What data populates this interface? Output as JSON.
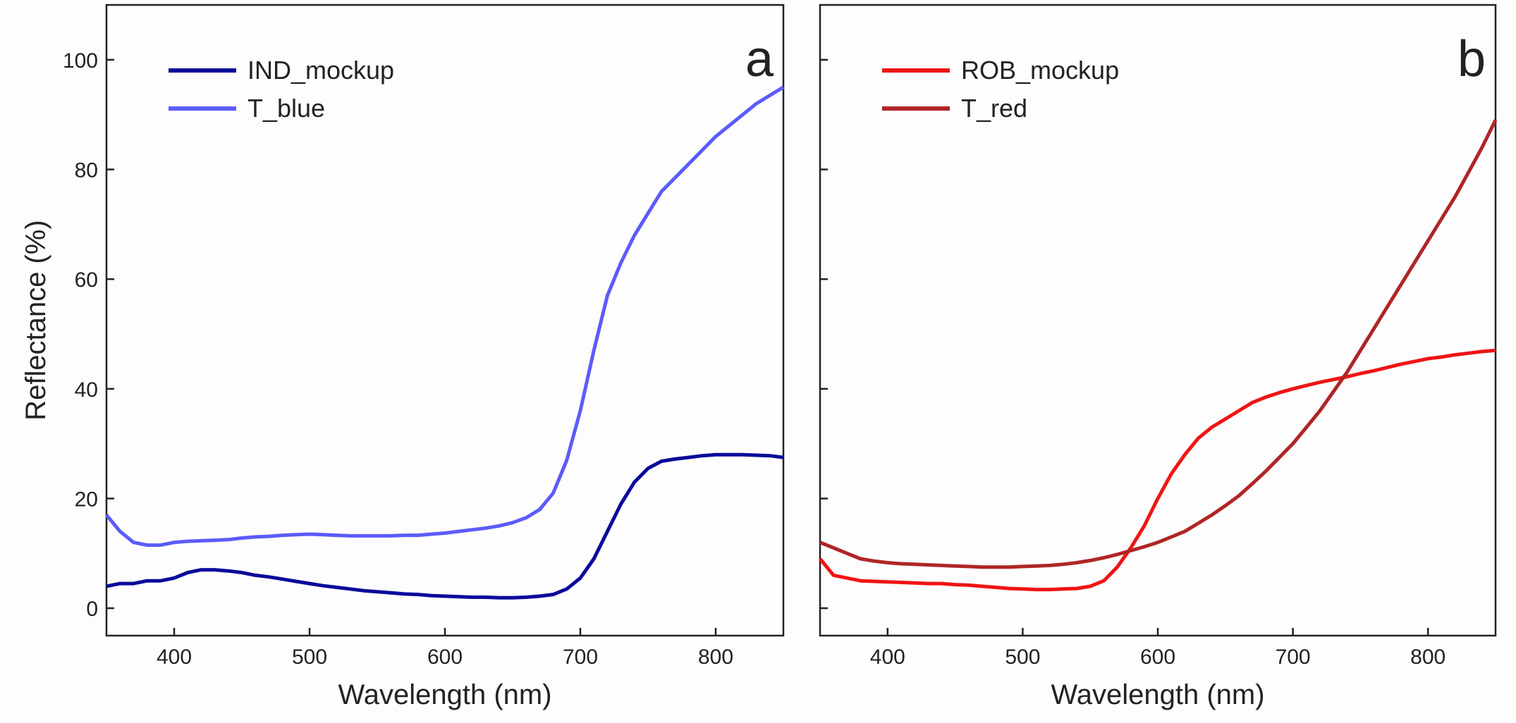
{
  "chart_data": [
    {
      "type": "line",
      "panel_label": "a",
      "xlabel": "Wavelength (nm)",
      "ylabel": "Reflectance (%)",
      "xlim": [
        350,
        850
      ],
      "xticks": [
        400,
        500,
        600,
        700,
        800
      ],
      "ylim": [
        -5,
        110
      ],
      "yticks": [
        0,
        20,
        40,
        60,
        80,
        100
      ],
      "ytick_labels": true,
      "legend": "upper left",
      "x": [
        350,
        360,
        370,
        380,
        390,
        400,
        410,
        420,
        430,
        440,
        450,
        460,
        470,
        480,
        490,
        500,
        510,
        520,
        530,
        540,
        550,
        560,
        570,
        580,
        590,
        600,
        610,
        620,
        630,
        640,
        650,
        660,
        670,
        680,
        690,
        700,
        710,
        720,
        730,
        740,
        750,
        760,
        770,
        780,
        790,
        800,
        810,
        820,
        830,
        840,
        850
      ],
      "series": [
        {
          "name": "IND_mockup",
          "color": "#0a0a9a",
          "values": [
            4,
            4.5,
            4.5,
            5,
            5,
            5.5,
            6.5,
            7,
            7,
            6.8,
            6.5,
            6,
            5.7,
            5.3,
            4.9,
            4.5,
            4.1,
            3.8,
            3.5,
            3.2,
            3,
            2.8,
            2.6,
            2.5,
            2.3,
            2.2,
            2.1,
            2,
            2,
            1.9,
            1.9,
            2,
            2.2,
            2.5,
            3.5,
            5.5,
            9,
            14,
            19,
            23,
            25.5,
            26.8,
            27.2,
            27.5,
            27.8,
            28,
            28,
            28,
            27.9,
            27.8,
            27.5
          ]
        },
        {
          "name": "T_blue",
          "color": "#5b5bfb",
          "values": [
            17,
            14,
            12,
            11.5,
            11.5,
            12,
            12.2,
            12.3,
            12.4,
            12.5,
            12.8,
            13,
            13.1,
            13.3,
            13.4,
            13.5,
            13.4,
            13.3,
            13.2,
            13.2,
            13.2,
            13.2,
            13.3,
            13.3,
            13.5,
            13.7,
            14,
            14.3,
            14.6,
            15,
            15.6,
            16.5,
            18,
            21,
            27,
            36,
            47,
            57,
            63,
            68,
            72,
            76,
            78.5,
            81,
            83.5,
            86,
            88,
            90,
            92,
            93.5,
            95
          ]
        }
      ]
    },
    {
      "type": "line",
      "panel_label": "b",
      "xlabel": "Wavelength (nm)",
      "xlim": [
        350,
        850
      ],
      "xticks": [
        400,
        500,
        600,
        700,
        800
      ],
      "ylim": [
        -5,
        110
      ],
      "yticks": [
        0,
        20,
        40,
        60,
        80,
        100
      ],
      "ytick_labels": false,
      "legend": "upper left",
      "x": [
        350,
        360,
        370,
        380,
        390,
        400,
        410,
        420,
        430,
        440,
        450,
        460,
        470,
        480,
        490,
        500,
        510,
        520,
        530,
        540,
        550,
        560,
        570,
        580,
        590,
        600,
        610,
        620,
        630,
        640,
        650,
        660,
        670,
        680,
        690,
        700,
        710,
        720,
        730,
        740,
        750,
        760,
        770,
        780,
        790,
        800,
        810,
        820,
        830,
        840,
        850
      ],
      "series": [
        {
          "name": "ROB_mockup",
          "color": "#f01414",
          "values": [
            9,
            6,
            5.5,
            5,
            4.9,
            4.8,
            4.7,
            4.6,
            4.5,
            4.5,
            4.3,
            4.2,
            4,
            3.8,
            3.6,
            3.5,
            3.4,
            3.4,
            3.5,
            3.6,
            4,
            5,
            7.5,
            11,
            15,
            20,
            24.5,
            28,
            31,
            33,
            34.5,
            36,
            37.5,
            38.5,
            39.3,
            40,
            40.6,
            41.2,
            41.7,
            42.2,
            42.8,
            43.3,
            43.9,
            44.5,
            45,
            45.5,
            45.8,
            46.2,
            46.5,
            46.8,
            47
          ]
        },
        {
          "name": "T_red",
          "color": "#b02525",
          "values": [
            12,
            11,
            10,
            9,
            8.6,
            8.3,
            8.1,
            8,
            7.9,
            7.8,
            7.7,
            7.6,
            7.5,
            7.5,
            7.5,
            7.6,
            7.7,
            7.8,
            8,
            8.3,
            8.7,
            9.2,
            9.8,
            10.5,
            11.2,
            12,
            13,
            14,
            15.5,
            17,
            18.7,
            20.5,
            22.7,
            25,
            27.5,
            30,
            33,
            36,
            39.5,
            43,
            47,
            51,
            55,
            59,
            63,
            67,
            71,
            75,
            79.5,
            84,
            89
          ]
        }
      ]
    }
  ]
}
